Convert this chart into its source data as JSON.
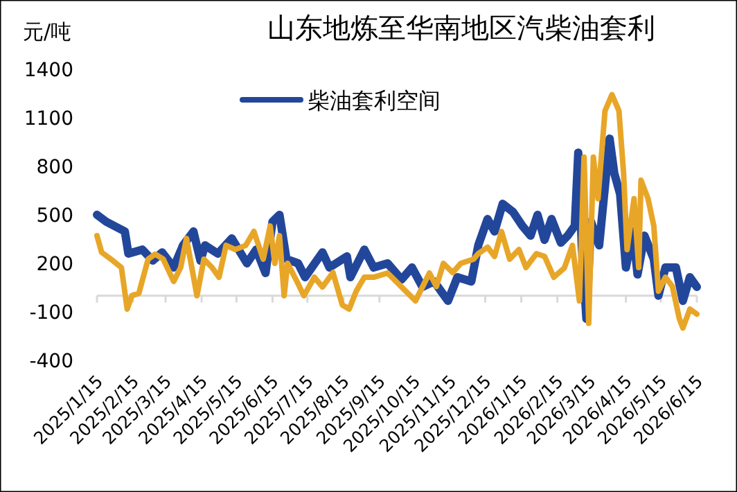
{
  "chart_data": {
    "type": "line",
    "title": "山东地炼至华南地区汽柴油套利",
    "ylabel": "元/吨",
    "xlim": [
      "2025-01-15",
      "2026-06-15"
    ],
    "xticks": [
      {
        "value": "2025-01-15",
        "label": "2025/1/15"
      },
      {
        "value": "2025-02-15",
        "label": "2025/2/15"
      },
      {
        "value": "2025-03-15",
        "label": "2025/3/15"
      },
      {
        "value": "2025-04-15",
        "label": "2025/4/15"
      },
      {
        "value": "2025-05-15",
        "label": "2025/5/15"
      },
      {
        "value": "2025-06-15",
        "label": "2025/6/15"
      },
      {
        "value": "2025-07-15",
        "label": "2025/7/15"
      },
      {
        "value": "2025-08-15",
        "label": "2025/8/15"
      },
      {
        "value": "2025-09-15",
        "label": "2025/9/15"
      },
      {
        "value": "2025-10-15",
        "label": "2025/10/15"
      },
      {
        "value": "2025-11-15",
        "label": "2025/11/15"
      },
      {
        "value": "2025-12-15",
        "label": "2025/12/15"
      },
      {
        "value": "2026-01-15",
        "label": "2026/1/15"
      },
      {
        "value": "2026-02-15",
        "label": "2026/2/15"
      },
      {
        "value": "2026-03-15",
        "label": "2026/3/15"
      },
      {
        "value": "2026-04-15",
        "label": "2026/4/15"
      },
      {
        "value": "2026-05-15",
        "label": "2026/5/15"
      },
      {
        "value": "2026-06-15",
        "label": "2026/6/15"
      }
    ],
    "ylim": [
      -400,
      1400
    ],
    "yticks": [
      -400,
      -100,
      200,
      500,
      800,
      1100,
      1400
    ],
    "grid": false,
    "legend": "top left",
    "line_style": "solid",
    "marker": "none",
    "series": [
      {
        "name": "柴油套利空间",
        "color": "#22479a",
        "x": [
          "2025-01-15",
          "2025-01-23",
          "2025-02-08",
          "2025-02-11",
          "2025-02-23",
          "2025-03-04",
          "2025-03-12",
          "2025-03-22",
          "2025-03-30",
          "2025-04-08",
          "2025-04-14",
          "2025-04-18",
          "2025-04-29",
          "2025-05-11",
          "2025-05-24",
          "2025-06-01",
          "2025-06-09",
          "2025-06-15",
          "2025-06-21",
          "2025-06-27",
          "2025-07-07",
          "2025-07-13",
          "2025-07-28",
          "2025-08-03",
          "2025-08-18",
          "2025-08-21",
          "2025-09-02",
          "2025-09-10",
          "2025-09-22",
          "2025-10-04",
          "2025-10-13",
          "2025-10-22",
          "2025-11-01",
          "2025-11-13",
          "2025-11-21",
          "2025-12-03",
          "2025-12-09",
          "2025-12-17",
          "2025-12-23",
          "2025-12-30",
          "2026-01-08",
          "2026-01-16",
          "2026-01-23",
          "2026-01-29",
          "2026-02-04",
          "2026-02-10",
          "2026-02-18",
          "2026-02-24",
          "2026-03-02",
          "2026-03-05",
          "2026-03-08",
          "2026-03-12",
          "2026-03-16",
          "2026-03-23",
          "2026-04-01",
          "2026-04-05",
          "2026-04-10",
          "2026-04-15",
          "2026-04-21",
          "2026-04-25",
          "2026-05-01",
          "2026-05-09",
          "2026-05-13",
          "2026-05-19",
          "2026-05-28",
          "2026-06-03",
          "2026-06-09",
          "2026-06-15"
        ],
        "values": [
          500,
          457,
          397,
          260,
          285,
          217,
          268,
          174,
          311,
          397,
          217,
          311,
          260,
          354,
          200,
          285,
          140,
          457,
          500,
          226,
          200,
          114,
          268,
          174,
          243,
          114,
          285,
          174,
          200,
          100,
          174,
          54,
          88,
          -32,
          114,
          88,
          311,
          474,
          397,
          568,
          517,
          431,
          371,
          500,
          345,
          474,
          328,
          371,
          431,
          885,
          311,
          -143,
          457,
          311,
          971,
          757,
          628,
          174,
          397,
          131,
          371,
          226,
          0,
          174,
          174,
          -32,
          114,
          54
        ]
      },
      {
        "color": "#e8a628",
        "x": [
          "2025-01-15",
          "2025-01-19",
          "2025-01-27",
          "2025-02-05",
          "2025-02-10",
          "2025-02-14",
          "2025-02-20",
          "2025-02-28",
          "2025-03-06",
          "2025-03-13",
          "2025-03-22",
          "2025-03-28",
          "2025-04-02",
          "2025-04-11",
          "2025-04-17",
          "2025-04-24",
          "2025-04-30",
          "2025-05-06",
          "2025-05-14",
          "2025-05-23",
          "2025-05-30",
          "2025-06-07",
          "2025-06-13",
          "2025-06-17",
          "2025-06-21",
          "2025-06-25",
          "2025-06-28",
          "2025-07-06",
          "2025-07-12",
          "2025-07-21",
          "2025-07-28",
          "2025-08-06",
          "2025-08-14",
          "2025-08-20",
          "2025-08-26",
          "2025-09-02",
          "2025-09-10",
          "2025-09-22",
          "2025-10-04",
          "2025-10-16",
          "2025-10-28",
          "2025-11-03",
          "2025-11-09",
          "2025-11-17",
          "2025-11-24",
          "2025-12-05",
          "2025-12-09",
          "2025-12-17",
          "2025-12-23",
          "2025-12-29",
          "2026-01-05",
          "2026-01-13",
          "2026-01-19",
          "2026-01-28",
          "2026-02-04",
          "2026-02-12",
          "2026-02-21",
          "2026-02-28",
          "2026-03-06",
          "2026-03-10",
          "2026-03-14",
          "2026-03-18",
          "2026-03-22",
          "2026-03-28",
          "2026-04-03",
          "2026-04-09",
          "2026-04-13",
          "2026-04-16",
          "2026-04-22",
          "2026-04-26",
          "2026-04-28",
          "2026-05-04",
          "2026-05-09",
          "2026-05-13",
          "2026-05-19",
          "2026-05-25",
          "2026-05-31",
          "2026-06-03",
          "2026-06-09",
          "2026-06-15"
        ],
        "values": [
          371,
          268,
          226,
          174,
          -83,
          0,
          14,
          226,
          257,
          226,
          88,
          174,
          354,
          0,
          226,
          174,
          114,
          311,
          285,
          311,
          397,
          226,
          431,
          200,
          371,
          0,
          200,
          88,
          0,
          114,
          54,
          143,
          -57,
          -83,
          28,
          114,
          114,
          140,
          54,
          -32,
          140,
          57,
          200,
          143,
          200,
          226,
          260,
          300,
          243,
          397,
          226,
          285,
          174,
          260,
          243,
          114,
          171,
          311,
          -32,
          857,
          -171,
          857,
          600,
          1143,
          1243,
          1143,
          757,
          285,
          600,
          174,
          714,
          600,
          431,
          28,
          114,
          57,
          -143,
          -200,
          -83,
          -114
        ]
      }
    ]
  }
}
